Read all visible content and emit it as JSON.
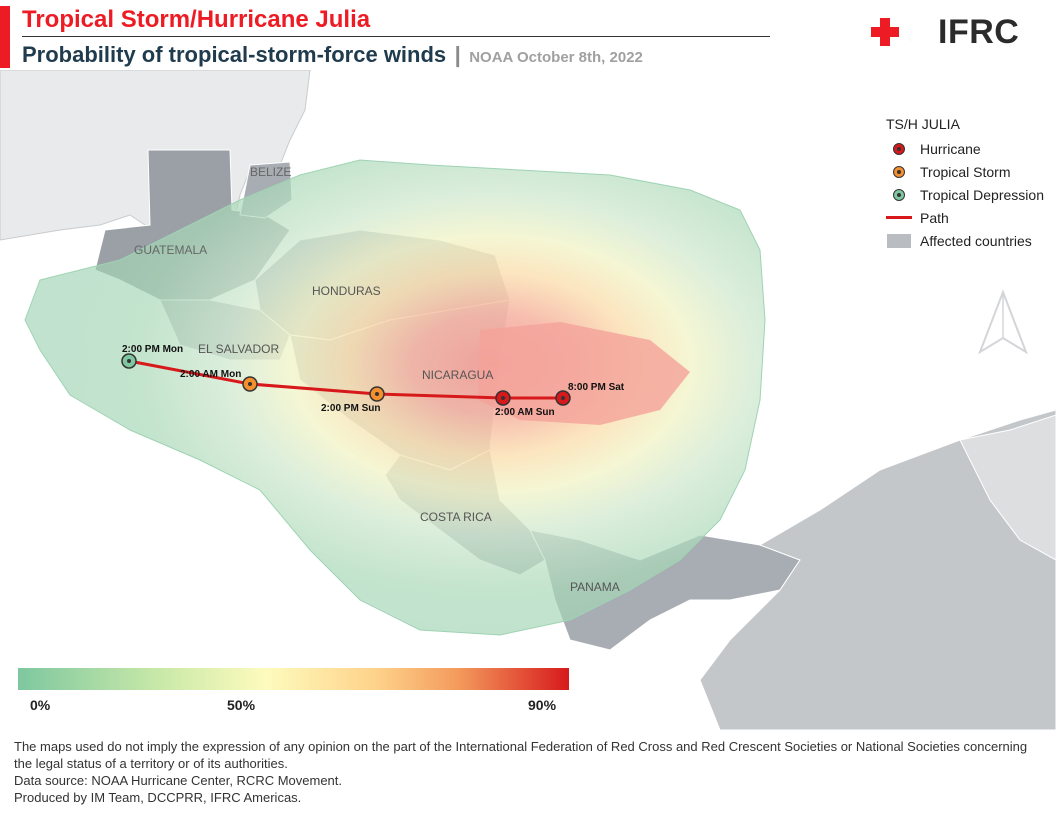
{
  "header": {
    "title": "Tropical Storm/Hurricane Julia",
    "subtitle": "Probability of tropical-storm-force winds",
    "separator": "|",
    "source": "NOAA October 8th, 2022",
    "accent_color": "#ed1c24"
  },
  "logo": {
    "text": "IFRC",
    "icon": "red-cross-crescent-icon"
  },
  "legend": {
    "title": "TS/H JULIA",
    "items": [
      {
        "label": "Hurricane",
        "color": "#d7191c",
        "symbol": "dot"
      },
      {
        "label": "Tropical Storm",
        "color": "#f48f2e",
        "symbol": "dot"
      },
      {
        "label": "Tropical Depression",
        "color": "#7ec7a0",
        "symbol": "dot"
      },
      {
        "label": "Path",
        "color": "#d7191c",
        "symbol": "line"
      },
      {
        "label": "Affected countries",
        "color": "#b9bcc0",
        "symbol": "box"
      }
    ]
  },
  "map": {
    "country_labels": [
      "BELIZE",
      "GUATEMALA",
      "HONDURAS",
      "EL SALVADOR",
      "NICARAGUA",
      "COSTA RICA",
      "PANAMA"
    ],
    "track_points": [
      {
        "label": "8:00 PM Sat",
        "category": "Hurricane"
      },
      {
        "label": "2:00 AM Sun",
        "category": "Hurricane"
      },
      {
        "label": "2:00 PM Sun",
        "category": "Tropical Storm"
      },
      {
        "label": "2:00 AM Mon",
        "category": "Tropical Storm"
      },
      {
        "label": "2:00 PM Mon",
        "category": "Tropical Depression"
      }
    ],
    "north_arrow": "north-arrow-icon"
  },
  "scale": {
    "ticks": [
      "0%",
      "50%",
      "90%"
    ],
    "colors": [
      "#7ec7a0",
      "#fdfbbd",
      "#d7191c"
    ]
  },
  "footer": {
    "disclaimer": "The maps used do not imply the expression of any opinion on the part of the International Federation of Red Cross and Red Crescent Societies or National Societies concerning the legal status of a territory or of its authorities.",
    "data_source": "Data source: NOAA Hurricane Center, RCRC Movement.",
    "produced_by": "Produced by IM Team, DCCPRR, IFRC Americas."
  }
}
